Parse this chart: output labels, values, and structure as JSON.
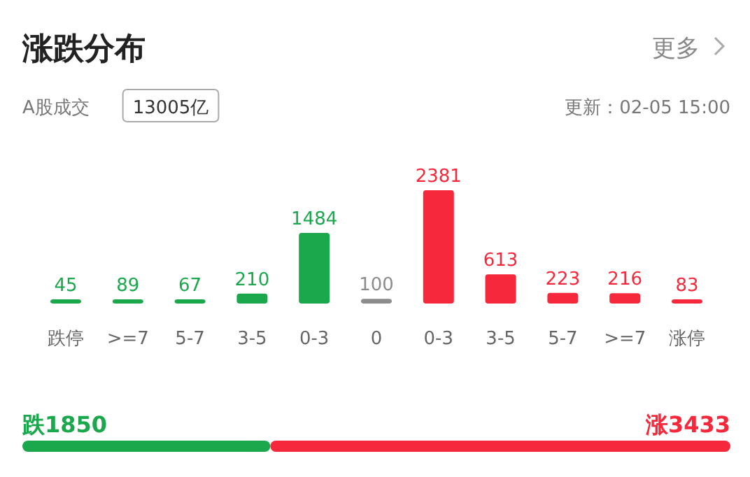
{
  "chart_data": [
    {
      "type": "bar",
      "title": "涨跌分布",
      "annotations": [
        "更多",
        "A股成交",
        "13005亿",
        "更新：02-05 15:00"
      ],
      "categories": [
        "跌停",
        ">=7",
        "5-7",
        "3-5",
        "0-3",
        "0",
        "0-3",
        "3-5",
        "5-7",
        ">=7",
        "涨停"
      ],
      "values": [
        45,
        89,
        67,
        210,
        1484,
        100,
        2381,
        613,
        223,
        216,
        83
      ],
      "colors": [
        "#1ba84c",
        "#1ba84c",
        "#1ba84c",
        "#1ba84c",
        "#1ba84c",
        "#8c8c8c",
        "#f5283c",
        "#f5283c",
        "#f5283c",
        "#f5283c",
        "#f5283c"
      ],
      "data_labels": true
    },
    {
      "type": "bar",
      "orientation": "horizontal",
      "stacked": true,
      "categories": [
        null
      ],
      "data_labels": true,
      "series": [
        {
          "name": "跌",
          "color": "#1ba84c",
          "values": [
            1850
          ]
        },
        {
          "name": "涨",
          "color": "#f5283c",
          "values": [
            3433
          ]
        }
      ]
    }
  ]
}
